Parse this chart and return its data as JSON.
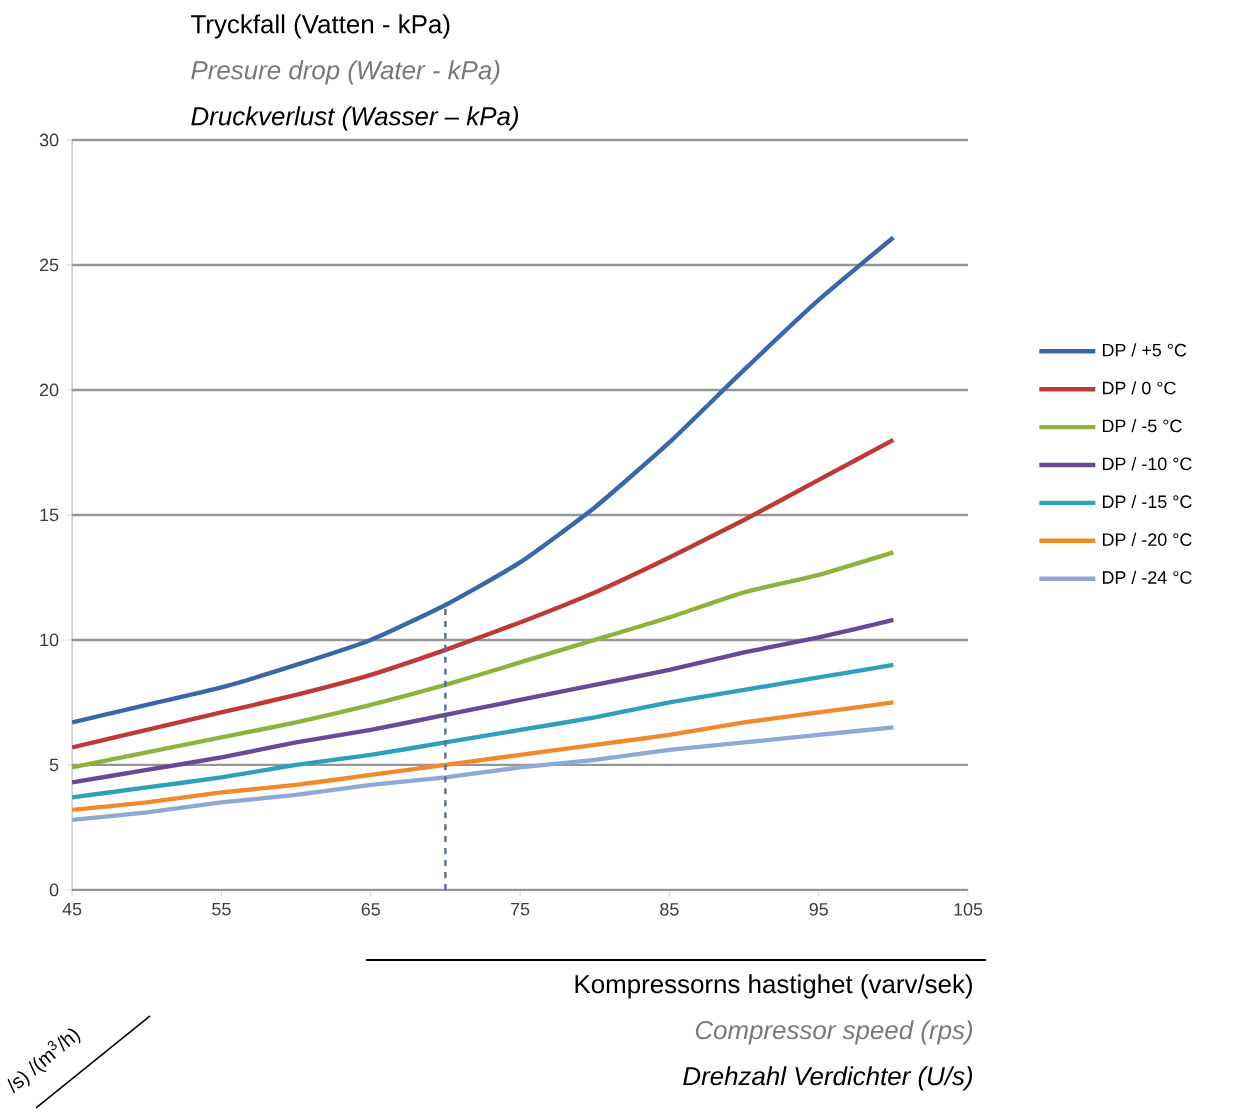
{
  "chart_data": {
    "type": "line",
    "title": "Tryckfall (Vatten - kPa)",
    "subtitle": "Presure drop (Water - kPa)",
    "xlabel": "Kompressorns hastighet (varv/sek)",
    "annotations": [
      "Druckverlust (Wasser – kPa)",
      "Compressor speed (rps)",
      "Drehzahl Verdichter (U/s)",
      "/s) /(m$^{3}$/h)"
    ],
    "x": [
      45,
      50,
      55,
      60,
      65,
      70,
      75,
      80,
      85,
      90,
      95,
      100
    ],
    "series": [
      {
        "name": "DP / +5 °C",
        "color": "#3a67a8",
        "values": [
          6.7,
          7.4,
          8.1,
          9.0,
          10.0,
          11.4,
          13.1,
          15.3,
          17.9,
          20.8,
          23.6,
          26.1
        ]
      },
      {
        "name": "DP / 0 °C",
        "color": "#be3a36",
        "values": [
          5.7,
          6.4,
          7.1,
          7.8,
          8.6,
          9.6,
          10.7,
          11.9,
          13.3,
          14.8,
          16.4,
          18.0
        ]
      },
      {
        "name": "DP / -5 °C",
        "color": "#8db33f",
        "values": [
          4.9,
          5.5,
          6.1,
          6.7,
          7.4,
          8.2,
          9.1,
          10.0,
          10.9,
          11.9,
          12.6,
          13.5
        ]
      },
      {
        "name": "DP / -10 °C",
        "color": "#674a93",
        "values": [
          4.3,
          4.8,
          5.3,
          5.9,
          6.4,
          7.0,
          7.6,
          8.2,
          8.8,
          9.5,
          10.1,
          10.8
        ]
      },
      {
        "name": "DP / -15 °C",
        "color": "#2fa0b9",
        "values": [
          3.7,
          4.1,
          4.5,
          5.0,
          5.4,
          5.9,
          6.4,
          6.9,
          7.5,
          8.0,
          8.5,
          9.0
        ]
      },
      {
        "name": "DP / -20 °C",
        "color": "#f0892a",
        "values": [
          3.2,
          3.5,
          3.9,
          4.2,
          4.6,
          5.0,
          5.4,
          5.8,
          6.2,
          6.7,
          7.1,
          7.5
        ]
      },
      {
        "name": "DP / -24 °C",
        "color": "#8fa8d5",
        "values": [
          2.8,
          3.1,
          3.5,
          3.8,
          4.2,
          4.5,
          4.9,
          5.2,
          5.6,
          5.9,
          6.2,
          6.5
        ]
      }
    ],
    "ref_lines": [
      {
        "axis": "x",
        "value": 70,
        "color": "#5a6a9a",
        "line_style": "dashed"
      }
    ],
    "xlim": [
      45,
      105
    ],
    "xticks": [
      45,
      55,
      65,
      75,
      85,
      95,
      105
    ],
    "ylim": [
      0,
      30
    ],
    "yticks": [
      0,
      5,
      10,
      15,
      20,
      25,
      30
    ],
    "grid": "y",
    "legend": "right",
    "marker": "none",
    "line_style": "solid"
  }
}
